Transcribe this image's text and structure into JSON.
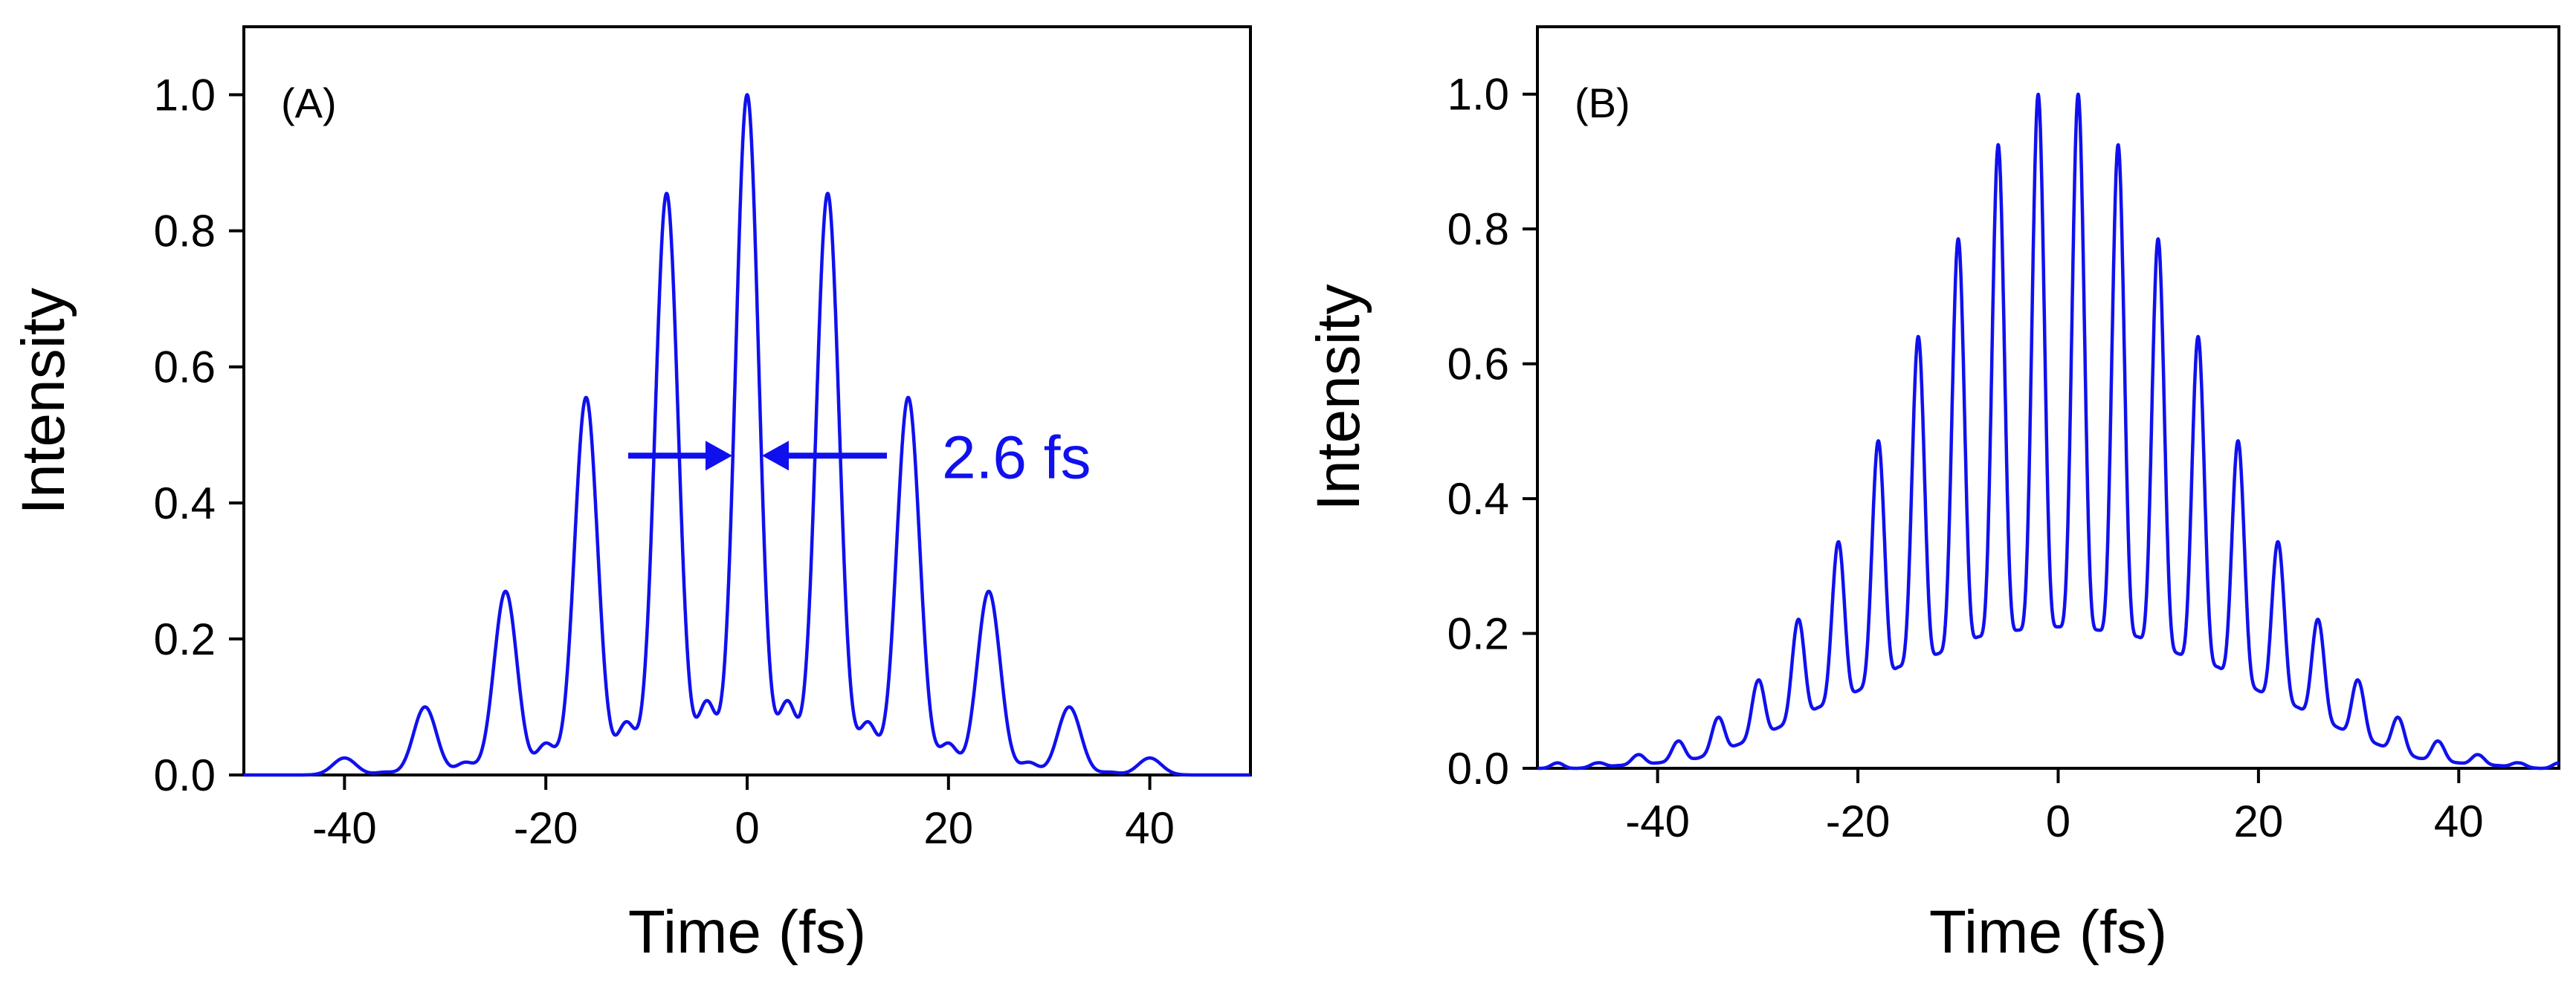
{
  "colors": {
    "series": "#1010ee",
    "axis": "#000000",
    "background": "#ffffff"
  },
  "chart_data": [
    {
      "type": "line",
      "panel_label": "(A)",
      "xlabel": "Time (fs)",
      "ylabel": "Intensity",
      "xlim": [
        -50,
        50
      ],
      "ylim": [
        0,
        1.1
      ],
      "xticks": [
        -40,
        -20,
        0,
        20,
        40
      ],
      "xtick_labels": [
        "-40",
        "-20",
        "0",
        "20",
        "40"
      ],
      "yticks": [
        0,
        0.2,
        0.4,
        0.6,
        0.8,
        1.0
      ],
      "ytick_labels": [
        "0.0",
        "0.2",
        "0.4",
        "0.6",
        "0.8",
        "1.0"
      ],
      "series": [
        {
          "name": "intensity",
          "color": "#1010ee",
          "main_peaks": {
            "t": [
              -40,
              -32,
              -24,
              -16,
              -8,
              0,
              8,
              16,
              24,
              32,
              40
            ],
            "values": [
              0.025,
              0.1,
              0.27,
              0.555,
              0.855,
              1.0,
              0.855,
              0.555,
              0.27,
              0.1,
              0.025
            ]
          },
          "side_peaks": {
            "t": [
              -36,
              -28,
              -20,
              -12,
              -4,
              4,
              12,
              20,
              28,
              36
            ],
            "values": [
              0.004,
              0.018,
              0.045,
              0.075,
              0.105,
              0.105,
              0.075,
              0.045,
              0.018,
              0.004
            ]
          },
          "peak_fwhm_fs": 2.6
        }
      ],
      "annotations": [
        {
          "text": "2.6 fs",
          "type": "fwhm-arrows",
          "center": 0,
          "y": 0.5
        }
      ]
    },
    {
      "type": "line",
      "panel_label": "(B)",
      "xlabel": "Time (fs)",
      "ylabel": "Intensity",
      "xlim": [
        -52,
        50
      ],
      "ylim": [
        0,
        1.1
      ],
      "xticks": [
        -40,
        -20,
        0,
        20,
        40
      ],
      "xtick_labels": [
        "-40",
        "-20",
        "0",
        "20",
        "40"
      ],
      "yticks": [
        0,
        0.2,
        0.4,
        0.6,
        0.8,
        1.0
      ],
      "ytick_labels": [
        "0.0",
        "0.2",
        "0.4",
        "0.6",
        "0.8",
        "1.0"
      ],
      "series": [
        {
          "name": "intensity",
          "color": "#1010ee",
          "period_fs": 4,
          "peaks": {
            "t": [
              -46,
              -42,
              -38,
              -34,
              -30,
              -26,
              -22,
              -18,
              -14,
              -10,
              -6,
              -2,
              2,
              6,
              10,
              14,
              18,
              22,
              26,
              30,
              34,
              38,
              42,
              46
            ],
            "values": [
              0.008,
              0.02,
              0.04,
              0.075,
              0.13,
              0.22,
              0.335,
              0.485,
              0.64,
              0.785,
              0.925,
              1.0,
              1.0,
              0.925,
              0.785,
              0.64,
              0.485,
              0.335,
              0.22,
              0.13,
              0.075,
              0.04,
              0.02,
              0.008
            ]
          },
          "troughs": {
            "t": [
              -48,
              -44,
              -40,
              -36,
              -32,
              -28,
              -24,
              -20,
              -16,
              -12,
              -8,
              -4,
              0,
              4,
              8,
              12,
              16,
              20,
              24,
              28,
              32,
              36,
              40,
              44,
              48
            ],
            "values": [
              0.0,
              0.004,
              0.008,
              0.015,
              0.035,
              0.06,
              0.09,
              0.115,
              0.15,
              0.17,
              0.195,
              0.205,
              0.21,
              0.205,
              0.195,
              0.17,
              0.15,
              0.115,
              0.09,
              0.06,
              0.035,
              0.015,
              0.008,
              0.004,
              0.0
            ]
          }
        }
      ],
      "annotations": []
    }
  ]
}
